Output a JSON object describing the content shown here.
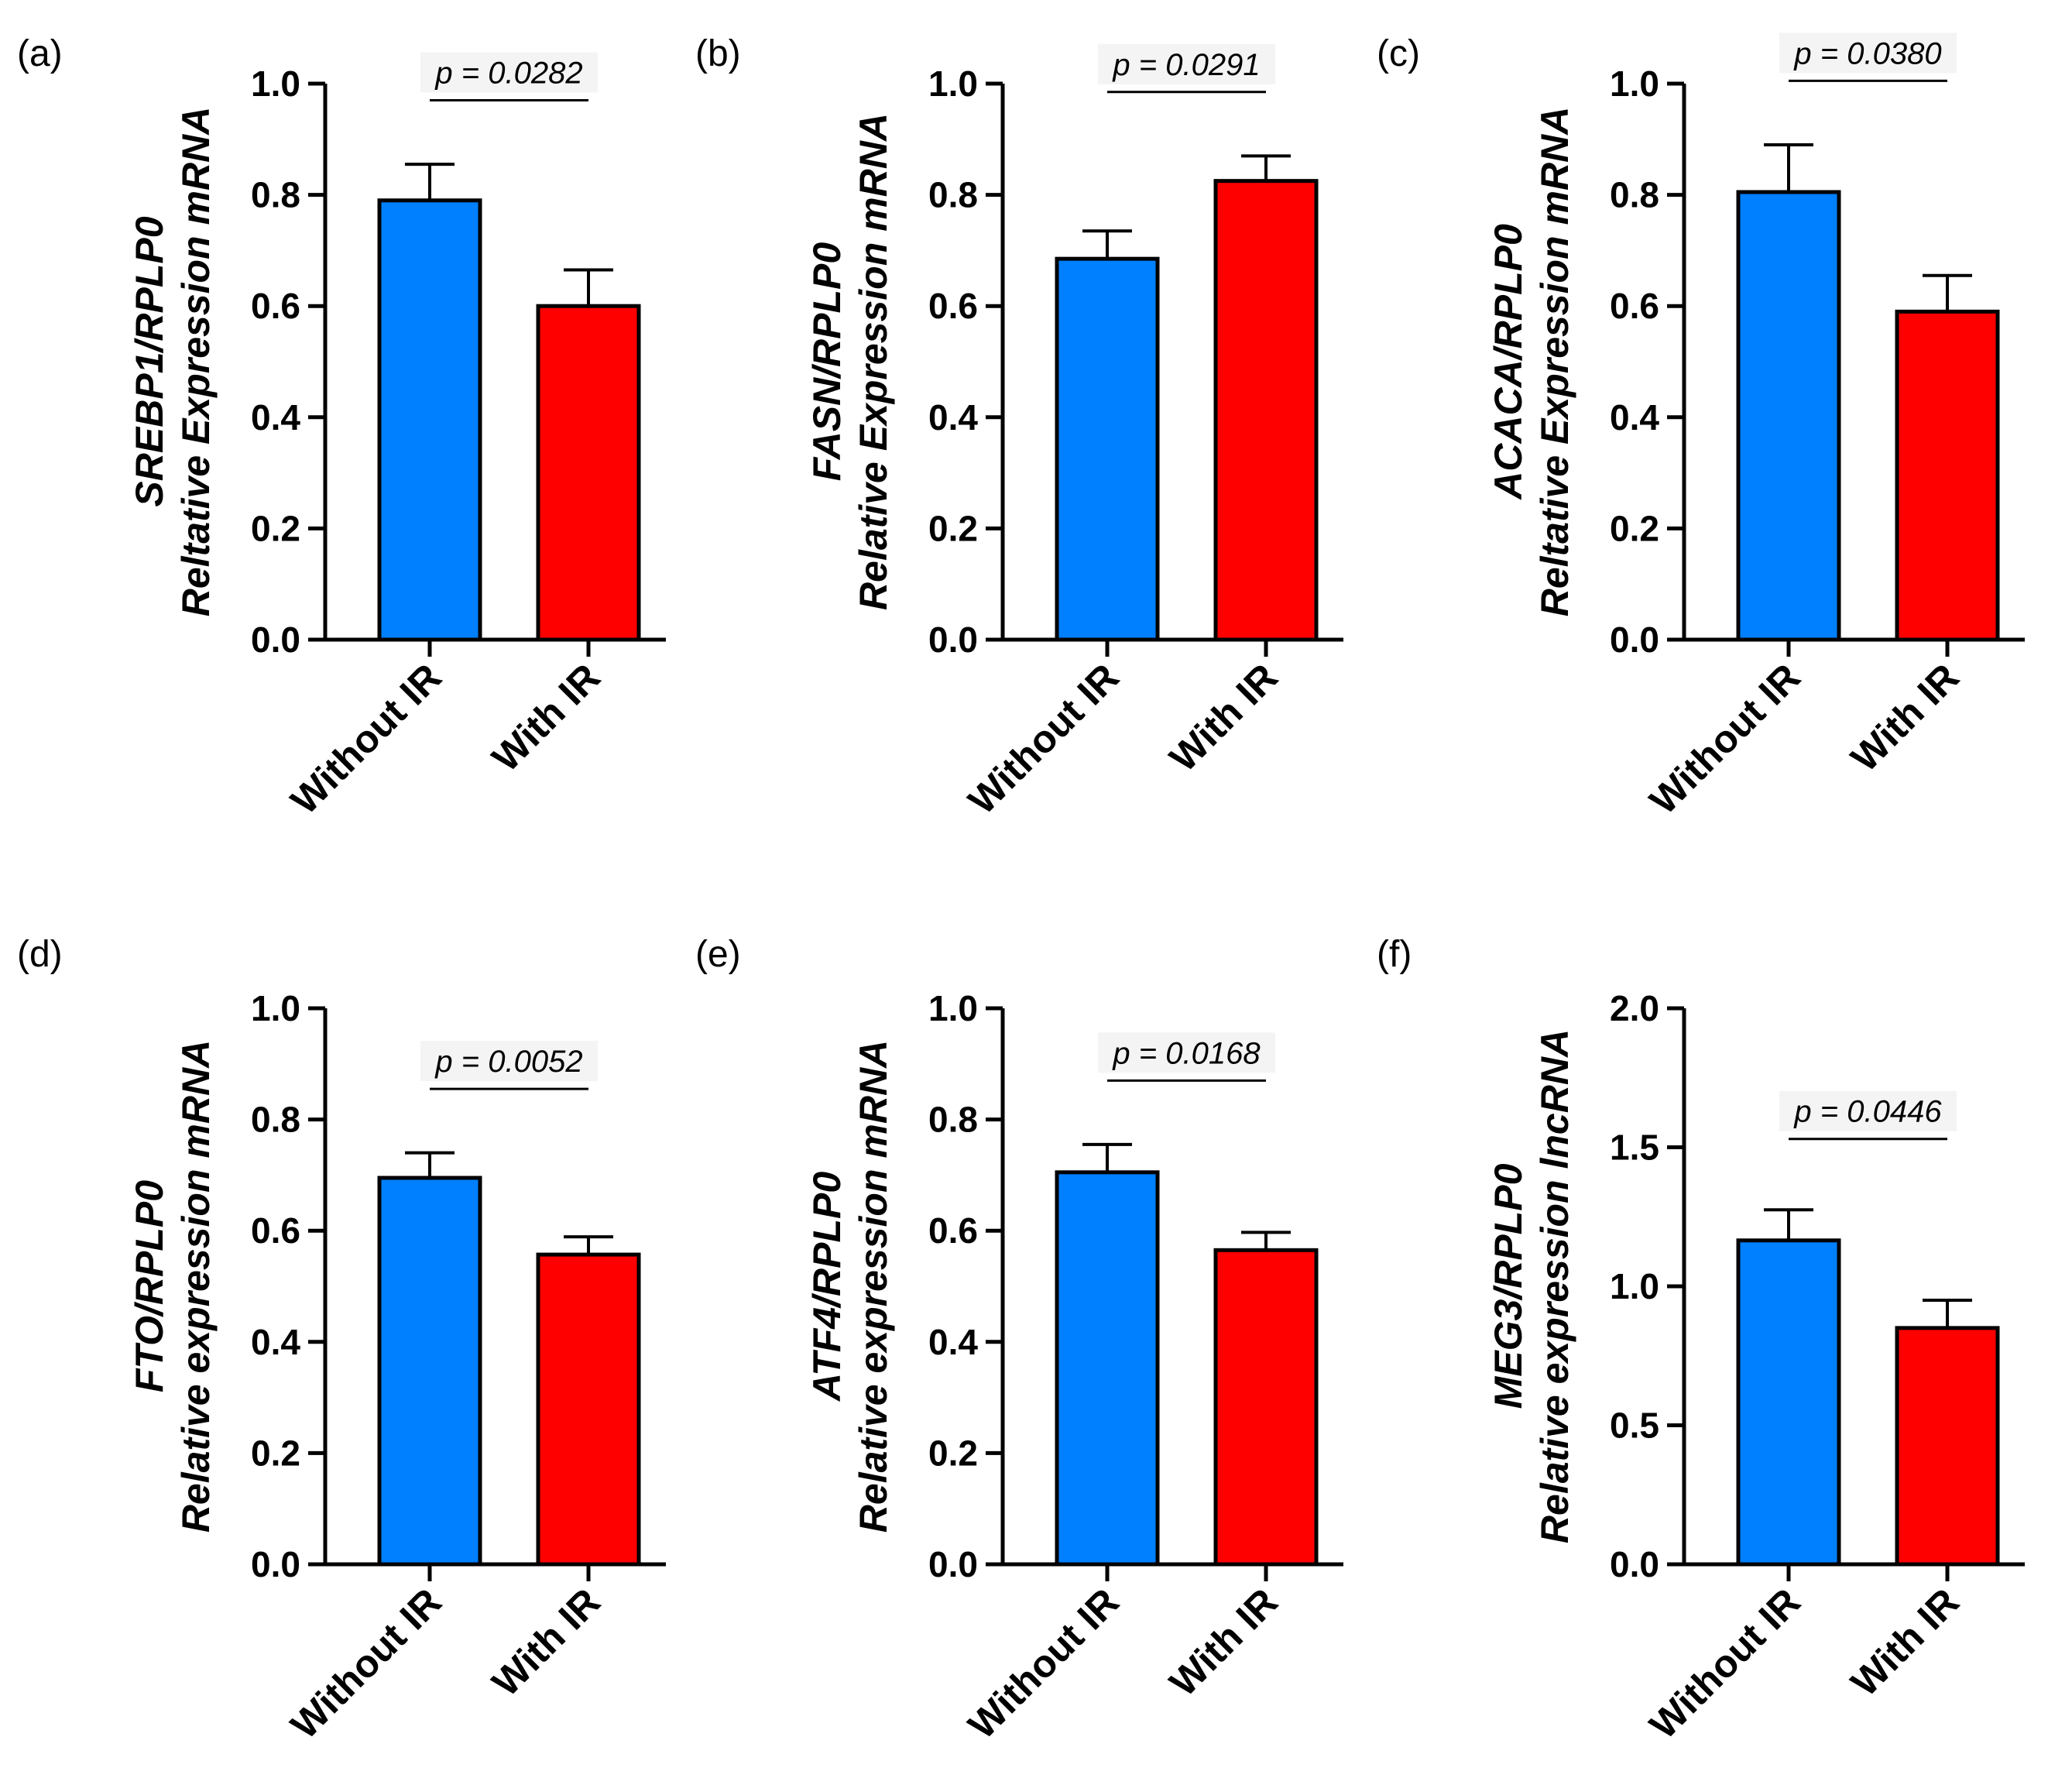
{
  "chart_data": [
    {
      "type": "bar",
      "panel": "(a)",
      "categories": [
        "Without IR",
        "With IR"
      ],
      "values": [
        0.79,
        0.6
      ],
      "errors": [
        0.065,
        0.065
      ],
      "colors": [
        "#0080FF",
        "#FF0000"
      ],
      "ylabel_gene": "SREBP1/RPLP0",
      "ylabel_desc": "Reltative Expression mRNA",
      "ylim": [
        0,
        1.0
      ],
      "yticks": [
        0.0,
        0.2,
        0.4,
        0.6,
        0.8,
        1.0
      ],
      "ytick_labels": [
        "0.0",
        "0.2",
        "0.4",
        "0.6",
        "0.8",
        "1.0"
      ],
      "p_value": "p = 0.0282",
      "p_line_y": 0.97
    },
    {
      "type": "bar",
      "panel": "(b)",
      "categories": [
        "Without IR",
        "With IR"
      ],
      "values": [
        0.685,
        0.825
      ],
      "errors": [
        0.05,
        0.045
      ],
      "colors": [
        "#0080FF",
        "#FF0000"
      ],
      "ylabel_gene": "FASN/RPLP0",
      "ylabel_desc": "Relative Expression mRNA",
      "ylim": [
        0,
        1.0
      ],
      "yticks": [
        0.0,
        0.2,
        0.4,
        0.6,
        0.8,
        1.0
      ],
      "ytick_labels": [
        "0.0",
        "0.2",
        "0.4",
        "0.6",
        "0.8",
        "1.0"
      ],
      "p_value": "p = 0.0291",
      "p_line_y": 0.985
    },
    {
      "type": "bar",
      "panel": "(c)",
      "categories": [
        "Without IR",
        "With IR"
      ],
      "values": [
        0.805,
        0.59
      ],
      "errors": [
        0.085,
        0.065
      ],
      "colors": [
        "#0080FF",
        "#FF0000"
      ],
      "ylabel_gene": "ACACA/RPLP0",
      "ylabel_desc": "Reltative Expression mRNA",
      "ylim": [
        0,
        1.0
      ],
      "yticks": [
        0.0,
        0.2,
        0.4,
        0.6,
        0.8,
        1.0
      ],
      "ytick_labels": [
        "0.0",
        "0.2",
        "0.4",
        "0.6",
        "0.8",
        "1.0"
      ],
      "p_value": "p = 0.0380",
      "p_line_y": 1.005
    },
    {
      "type": "bar",
      "panel": "(d)",
      "categories": [
        "Without IR",
        "With IR"
      ],
      "values": [
        0.695,
        0.557
      ],
      "errors": [
        0.045,
        0.032
      ],
      "colors": [
        "#0080FF",
        "#FF0000"
      ],
      "ylabel_gene": "FTO/RPLP0",
      "ylabel_desc": "Relative expression mRNA",
      "ylim": [
        0,
        1.0
      ],
      "yticks": [
        0.0,
        0.2,
        0.4,
        0.6,
        0.8,
        1.0
      ],
      "ytick_labels": [
        "0.0",
        "0.2",
        "0.4",
        "0.6",
        "0.8",
        "1.0"
      ],
      "p_value": "p = 0.0052",
      "p_line_y": 0.855
    },
    {
      "type": "bar",
      "panel": "(e)",
      "categories": [
        "Without IR",
        "With IR"
      ],
      "values": [
        0.705,
        0.565
      ],
      "errors": [
        0.05,
        0.032
      ],
      "colors": [
        "#0080FF",
        "#FF0000"
      ],
      "ylabel_gene": "ATF4/RPLP0",
      "ylabel_desc": "Relative expression mRNA",
      "ylim": [
        0,
        1.0
      ],
      "yticks": [
        0.0,
        0.2,
        0.4,
        0.6,
        0.8,
        1.0
      ],
      "ytick_labels": [
        "0.0",
        "0.2",
        "0.4",
        "0.6",
        "0.8",
        "1.0"
      ],
      "p_value": "p = 0.0168",
      "p_line_y": 0.87
    },
    {
      "type": "bar",
      "panel": "(f)",
      "categories": [
        "Without IR",
        "With IR"
      ],
      "values": [
        1.165,
        0.85
      ],
      "errors": [
        0.11,
        0.1
      ],
      "colors": [
        "#0080FF",
        "#FF0000"
      ],
      "ylabel_gene": "MEG3/RPLP0",
      "ylabel_desc": "Relative expression lncRNA",
      "ylim": [
        0,
        2.0
      ],
      "yticks": [
        0.0,
        0.5,
        1.0,
        1.5,
        2.0
      ],
      "ytick_labels": [
        "0.0",
        "0.5",
        "1.0",
        "1.5",
        "2.0"
      ],
      "p_value": "p = 0.0446",
      "p_line_y": 1.53
    }
  ]
}
